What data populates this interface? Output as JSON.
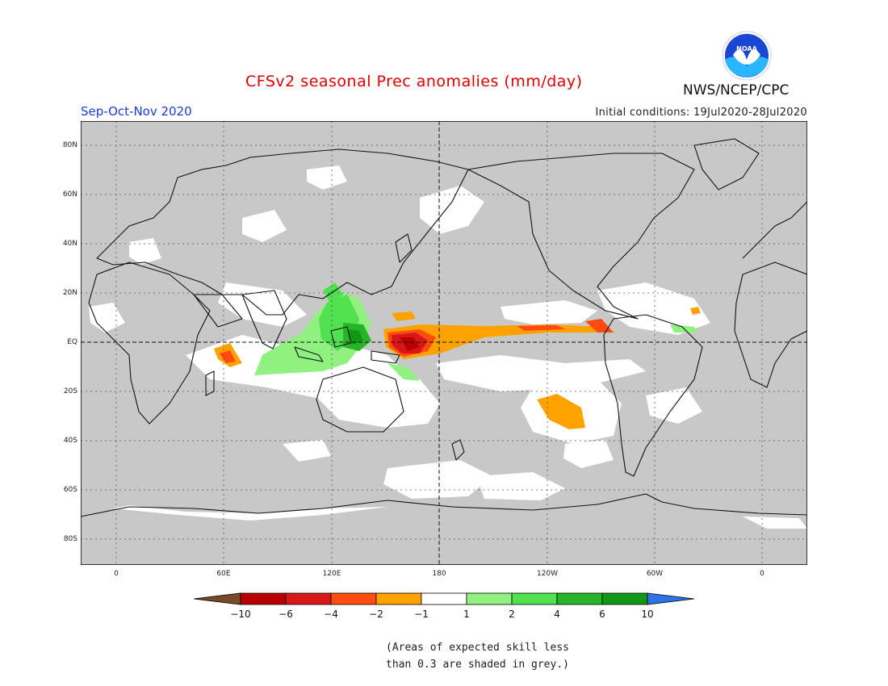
{
  "title": "CFSv2 seasonal Prec anomalies (mm/day)",
  "season": "Sep-Oct-Nov 2020",
  "agency": "NWS/NCEP/CPC",
  "logo_label": "NOAA",
  "initial_conditions": "Initial conditions: 19Jul2020-28Jul2020",
  "lat_ticks": [
    "80N",
    "60N",
    "40N",
    "20N",
    "EQ",
    "20S",
    "40S",
    "60S",
    "80S"
  ],
  "lon_ticks": [
    "0",
    "60E",
    "120E",
    "180",
    "120W",
    "60W",
    "0"
  ],
  "legend": {
    "labels": [
      "-10",
      "-6",
      "-4",
      "-2",
      "-1",
      "1",
      "2",
      "4",
      "6",
      "10"
    ],
    "colors": [
      "#7a4a2a",
      "#b80000",
      "#d81818",
      "#ff4a10",
      "#ffa200",
      "#ffffff",
      "#90f080",
      "#50e050",
      "#28b428",
      "#139613",
      "#2d74e6"
    ]
  },
  "note_lines": [
    "(Areas of expected skill less",
    "than 0.3 are shaded in grey.)"
  ],
  "colors": {
    "grey_shade": "#c8c8c8",
    "title_red": "#e00000",
    "season_blue": "#1a3ed8"
  }
}
